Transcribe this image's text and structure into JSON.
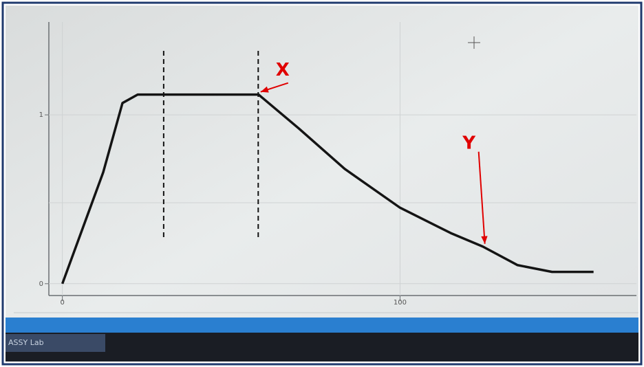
{
  "chart_data": {
    "type": "line",
    "x": [
      0,
      12.1,
      17.8,
      22.3,
      35,
      50,
      58.1,
      70,
      83.6,
      100,
      115,
      124.5,
      134.8,
      145,
      157.3
    ],
    "series": [
      {
        "color": "#141414",
        "values": [
          0,
          0.66,
          1.07,
          1.12,
          1.12,
          1.12,
          1.12,
          0.92,
          0.68,
          0.45,
          0.3,
          0.22,
          0.11,
          0.07,
          0.07
        ]
      }
    ],
    "xlim": [
      -4,
      170
    ],
    "ylim": [
      -0.07,
      1.55
    ],
    "xticks": [
      0,
      100
    ],
    "yticks": [
      0,
      1
    ],
    "vlines": [
      30,
      58
    ],
    "annotations": [
      {
        "text": "X",
        "x": 58.1,
        "y": 1.12
      },
      {
        "text": "Y",
        "x": 124.5,
        "y": 0.22
      }
    ],
    "taskbar_label": "ASSY Lab"
  }
}
